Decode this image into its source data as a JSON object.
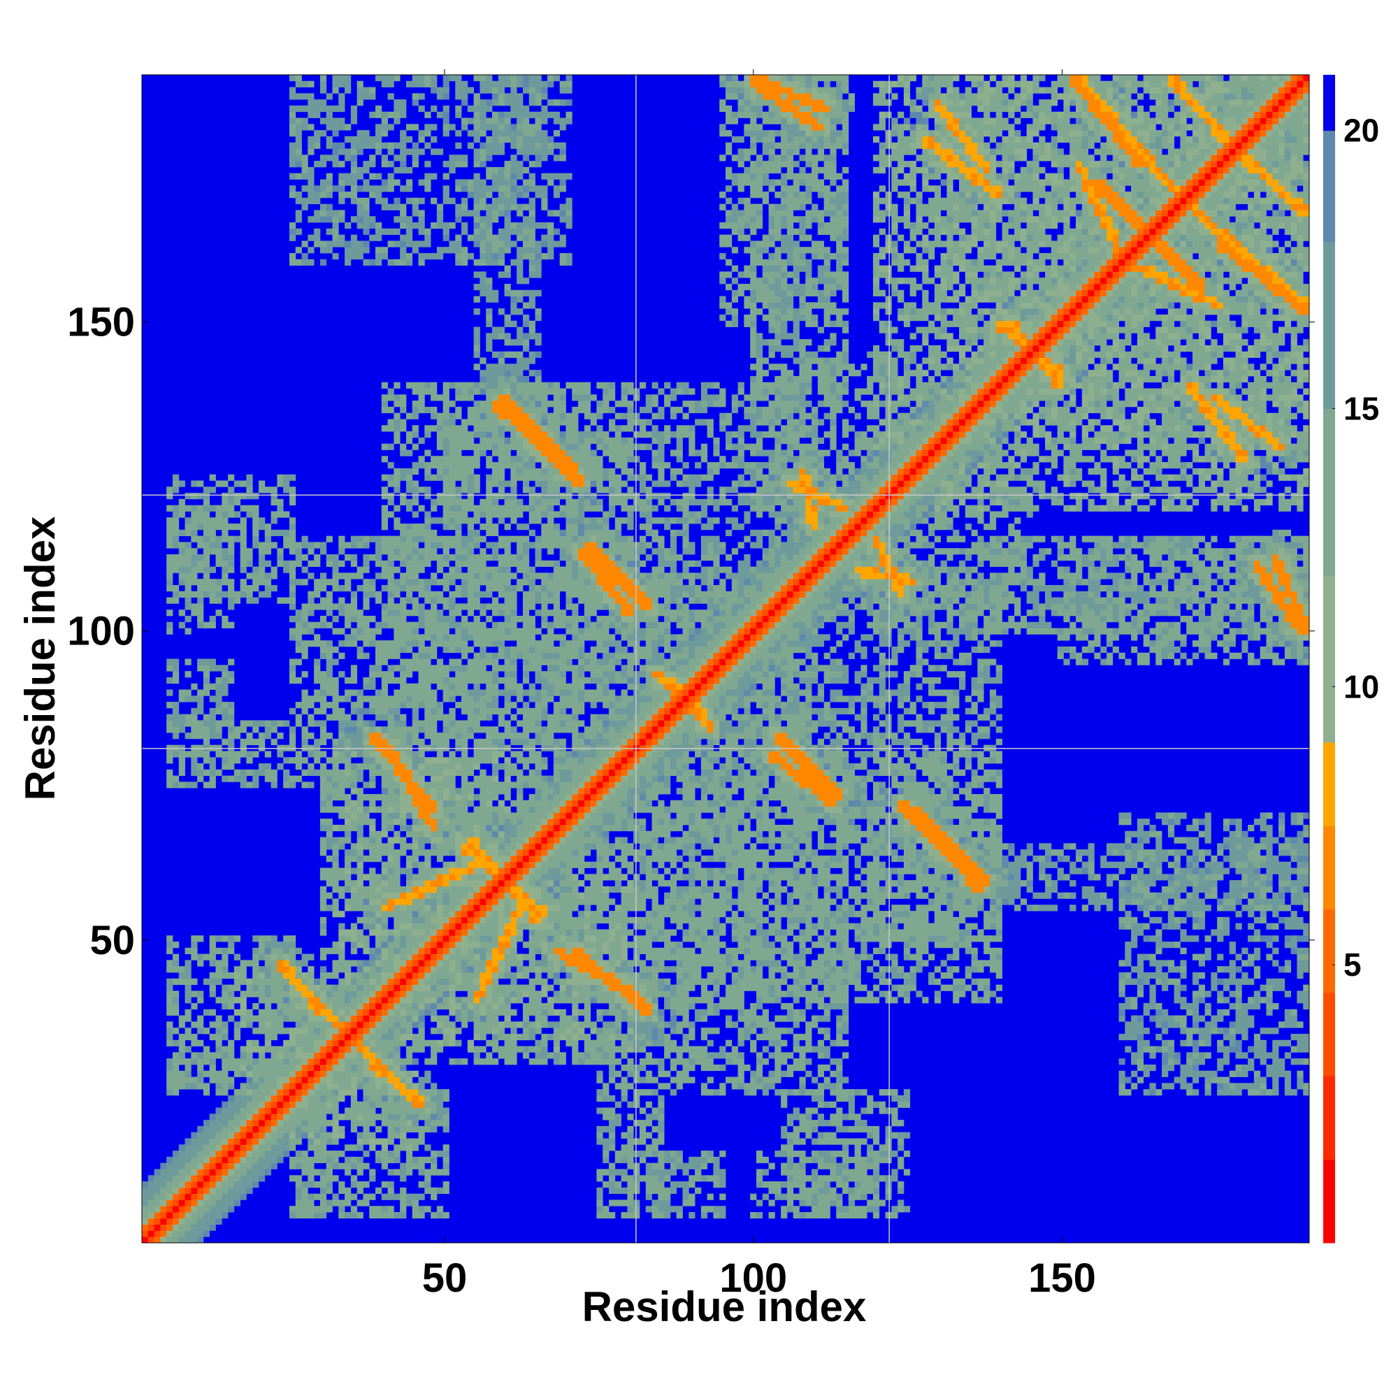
{
  "chart_data": {
    "type": "heatmap",
    "title": "",
    "xlabel": "Residue index",
    "ylabel": "Residue index",
    "n_residues": 190,
    "xlim": [
      1,
      190
    ],
    "ylim": [
      1,
      190
    ],
    "x_ticks": [
      50,
      100,
      150
    ],
    "y_ticks": [
      50,
      100,
      150
    ],
    "x_tick_labels": [
      "50",
      "100",
      "150"
    ],
    "y_tick_labels": [
      "50",
      "100",
      "150"
    ],
    "domain_boundaries": [
      81,
      122
    ],
    "colorbar": {
      "range": [
        0,
        21
      ],
      "ticks": [
        5,
        10,
        15,
        20
      ],
      "tick_labels": [
        "5",
        "10",
        "15",
        "20"
      ],
      "colors": [
        "#ff0000",
        "#ff2a00",
        "#ff4d00",
        "#ff6a00",
        "#ff8800",
        "#ffa500",
        "#8fb08f",
        "#80a890",
        "#6f9a9c",
        "#5e88ac",
        "#0000ee"
      ],
      "levels": [
        0,
        1.5,
        3,
        4.5,
        6,
        7.5,
        9,
        12,
        15,
        18,
        20,
        21
      ]
    },
    "background_value": 21,
    "diagonal_value": 1,
    "contact_segments": [
      {
        "a": [
          23,
          46
        ],
        "b": [
          40,
          28
        ],
        "value": 7
      },
      {
        "a": [
          38,
          83
        ],
        "b": [
          48,
          71
        ],
        "value": 6
      },
      {
        "a": [
          53,
          65
        ],
        "b": [
          66,
          54
        ],
        "value": 7
      },
      {
        "a": [
          55,
          40
        ],
        "b": [
          62,
          55
        ],
        "value": 7
      },
      {
        "a": [
          68,
          48
        ],
        "b": [
          82,
          40
        ],
        "value": 6
      },
      {
        "a": [
          87,
          92
        ],
        "b": [
          93,
          84
        ],
        "value": 7
      },
      {
        "a": [
          72,
          113
        ],
        "b": [
          80,
          103
        ],
        "value": 6
      },
      {
        "a": [
          104,
          83
        ],
        "b": [
          114,
          73
        ],
        "value": 6
      },
      {
        "a": [
          126,
          71
        ],
        "b": [
          138,
          59
        ],
        "value": 6
      },
      {
        "a": [
          117,
          110
        ],
        "b": [
          126,
          108
        ],
        "value": 7
      },
      {
        "a": [
          58,
          137
        ],
        "b": [
          72,
          124
        ],
        "value": 6
      },
      {
        "a": [
          106,
          124
        ],
        "b": [
          115,
          120
        ],
        "value": 7
      },
      {
        "a": [
          100,
          189
        ],
        "b": [
          111,
          182
        ],
        "value": 6
      },
      {
        "a": [
          128,
          180
        ],
        "b": [
          140,
          171
        ],
        "value": 7
      },
      {
        "a": [
          153,
          190
        ],
        "b": [
          170,
          170
        ],
        "value": 7
      },
      {
        "a": [
          156,
          173
        ],
        "b": [
          167,
          162
        ],
        "value": 6
      },
      {
        "a": [
          161,
          160
        ],
        "b": [
          176,
          153
        ],
        "value": 7
      },
      {
        "a": [
          175,
          182
        ],
        "b": [
          190,
          168
        ],
        "value": 7
      },
      {
        "a": [
          176,
          163
        ],
        "b": [
          190,
          152
        ],
        "value": 6
      },
      {
        "a": [
          175,
          138
        ],
        "b": [
          186,
          130
        ],
        "value": 7
      },
      {
        "a": [
          185,
          112
        ],
        "b": [
          190,
          100
        ],
        "value": 6
      },
      {
        "a": [
          140,
          150
        ],
        "b": [
          150,
          142
        ],
        "value": 7
      }
    ],
    "contact_regions": [
      {
        "x": [
          25,
          45
        ],
        "y": [
          15,
          40
        ],
        "value": 14
      },
      {
        "x": [
          5,
          25
        ],
        "y": [
          25,
          50
        ],
        "value": 15
      },
      {
        "x": [
          40,
          80
        ],
        "y": [
          30,
          60
        ],
        "value": 14
      },
      {
        "x": [
          30,
          80
        ],
        "y": [
          55,
          95
        ],
        "value": 15
      },
      {
        "x": [
          5,
          45
        ],
        "y": [
          75,
          85
        ],
        "value": 15
      },
      {
        "x": [
          25,
          80
        ],
        "y": [
          85,
          115
        ],
        "value": 15
      },
      {
        "x": [
          5,
          15
        ],
        "y": [
          100,
          120
        ],
        "value": 15
      },
      {
        "x": [
          80,
          120
        ],
        "y": [
          40,
          75
        ],
        "value": 15
      },
      {
        "x": [
          80,
          140
        ],
        "y": [
          75,
          110
        ],
        "value": 16
      },
      {
        "x": [
          120,
          140
        ],
        "y": [
          50,
          80
        ],
        "value": 15
      },
      {
        "x": [
          105,
          125
        ],
        "y": [
          5,
          25
        ],
        "value": 15
      },
      {
        "x": [
          85,
          95
        ],
        "y": [
          5,
          15
        ],
        "value": 16
      },
      {
        "x": [
          40,
          80
        ],
        "y": [
          120,
          140
        ],
        "value": 15
      },
      {
        "x": [
          100,
          125
        ],
        "y": [
          120,
          145
        ],
        "value": 15
      },
      {
        "x": [
          140,
          190
        ],
        "y": [
          100,
          115
        ],
        "value": 16
      },
      {
        "x": [
          140,
          190
        ],
        "y": [
          55,
          65
        ],
        "value": 17
      },
      {
        "x": [
          130,
          190
        ],
        "y": [
          120,
          190
        ],
        "value": 14
      },
      {
        "x": [
          95,
          115
        ],
        "y": [
          150,
          190
        ],
        "value": 15
      },
      {
        "x": [
          25,
          70
        ],
        "y": [
          160,
          190
        ],
        "value": 17
      }
    ]
  }
}
